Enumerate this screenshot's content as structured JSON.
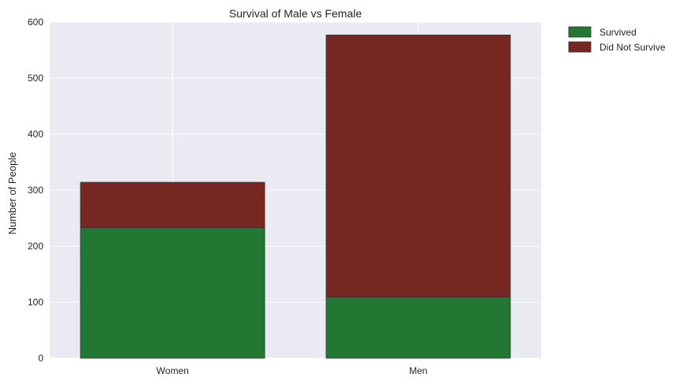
{
  "chart_data": {
    "type": "bar",
    "stacked": true,
    "title": "Survival of Male vs Female",
    "xlabel": "",
    "ylabel": "Number of People",
    "categories": [
      "Women",
      "Men"
    ],
    "series": [
      {
        "name": "Survived",
        "values": [
          233,
          109
        ],
        "color": "#227733"
      },
      {
        "name": "Did Not Survive",
        "values": [
          81,
          468
        ],
        "color": "#772722"
      }
    ],
    "ylim": [
      0,
      600
    ],
    "yticks": [
      0,
      100,
      200,
      300,
      400,
      500,
      600
    ],
    "grid": true,
    "legend_position": "outside-top-right",
    "background_color": "#EAEAF2",
    "grid_color": "#FFFFFF"
  }
}
